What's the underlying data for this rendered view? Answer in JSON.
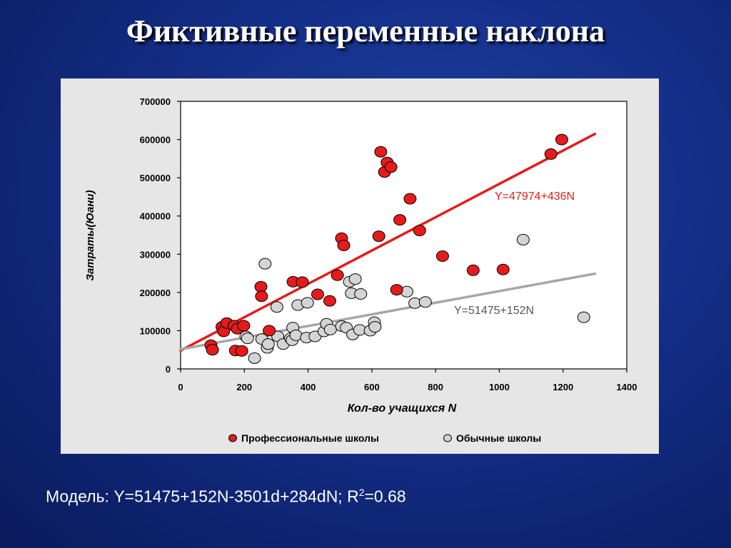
{
  "slide": {
    "title": "Фиктивные переменные наклона",
    "model_prefix": "Модель:  Y=51475+152N-3501d+284dN;  R",
    "model_sup": "2",
    "model_suffix": "=0.68"
  },
  "chart_data": {
    "type": "scatter",
    "xlabel": "Кол-во учащихся",
    "xlabel_var": "N",
    "ylabel": "Затраты(Юани)",
    "xlim": [
      0,
      1400
    ],
    "ylim": [
      0,
      700000
    ],
    "xticks": [
      0,
      200,
      400,
      600,
      800,
      1000,
      1200,
      1400
    ],
    "yticks": [
      0,
      100000,
      200000,
      300000,
      400000,
      500000,
      600000,
      700000
    ],
    "grid": false,
    "legend_position": "bottom",
    "colors": {
      "professional": "#e51b1b",
      "regular": "#d4d4d4",
      "professional_line": "#e51b1b",
      "regular_line": "#a6a6a6"
    },
    "series": [
      {
        "name": "Профессиональные школы",
        "points": [
          [
            95,
            62000
          ],
          [
            100,
            50000
          ],
          [
            130,
            110000
          ],
          [
            135,
            98000
          ],
          [
            145,
            120000
          ],
          [
            168,
            113000
          ],
          [
            172,
            48000
          ],
          [
            178,
            105000
          ],
          [
            192,
            47000
          ],
          [
            198,
            113000
          ],
          [
            252,
            215000
          ],
          [
            254,
            190000
          ],
          [
            278,
            100000
          ],
          [
            353,
            228000
          ],
          [
            382,
            227000
          ],
          [
            430,
            195000
          ],
          [
            468,
            178000
          ],
          [
            492,
            245000
          ],
          [
            505,
            342000
          ],
          [
            512,
            323000
          ],
          [
            622,
            347000
          ],
          [
            628,
            568000
          ],
          [
            640,
            515000
          ],
          [
            648,
            540000
          ],
          [
            660,
            528000
          ],
          [
            678,
            207000
          ],
          [
            688,
            390000
          ],
          [
            720,
            445000
          ],
          [
            750,
            362000
          ],
          [
            822,
            295000
          ],
          [
            918,
            258000
          ],
          [
            1012,
            260000
          ],
          [
            1162,
            562000
          ],
          [
            1196,
            600000
          ]
        ]
      },
      {
        "name": "Обычные школы",
        "points": [
          [
            205,
            85000
          ],
          [
            210,
            80000
          ],
          [
            232,
            28000
          ],
          [
            255,
            78000
          ],
          [
            265,
            275000
          ],
          [
            272,
            55000
          ],
          [
            275,
            65000
          ],
          [
            302,
            162000
          ],
          [
            305,
            85000
          ],
          [
            322,
            65000
          ],
          [
            345,
            80000
          ],
          [
            350,
            75000
          ],
          [
            352,
            108000
          ],
          [
            362,
            88000
          ],
          [
            368,
            167000
          ],
          [
            395,
            82000
          ],
          [
            398,
            173000
          ],
          [
            422,
            85000
          ],
          [
            450,
            98000
          ],
          [
            458,
            118000
          ],
          [
            470,
            103000
          ],
          [
            505,
            112000
          ],
          [
            520,
            108000
          ],
          [
            530,
            228000
          ],
          [
            536,
            198000
          ],
          [
            540,
            90000
          ],
          [
            548,
            235000
          ],
          [
            562,
            102000
          ],
          [
            565,
            196000
          ],
          [
            595,
            100000
          ],
          [
            608,
            122000
          ],
          [
            610,
            110000
          ],
          [
            710,
            202000
          ],
          [
            735,
            172000
          ],
          [
            768,
            175000
          ],
          [
            1075,
            338000
          ],
          [
            1265,
            135000
          ]
        ]
      }
    ],
    "regression_lines": [
      {
        "label": "Y=47974+436N",
        "intercept": 47974,
        "slope": 436,
        "x_range": [
          0,
          1300
        ]
      },
      {
        "label": "Y=51475+152N",
        "intercept": 51475,
        "slope": 152,
        "x_range": [
          0,
          1300
        ]
      }
    ]
  }
}
